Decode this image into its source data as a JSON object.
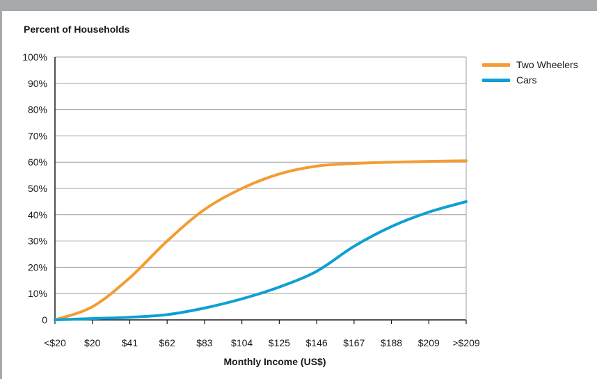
{
  "chart_data": {
    "type": "line",
    "ylabel": "Percent of Households",
    "xlabel": "Monthly Income (US$)",
    "categories": [
      "<$20",
      "$20",
      "$41",
      "$62",
      "$83",
      "$104",
      "$125",
      "$146",
      "$167",
      "$188",
      "$209",
      ">$209"
    ],
    "yticks": [
      "0",
      "10%",
      "20%",
      "30%",
      "40%",
      "50%",
      "60%",
      "70%",
      "80%",
      "90%",
      "100%"
    ],
    "ylim": [
      0,
      100
    ],
    "grid": true,
    "legend_position": "top-right",
    "series": [
      {
        "name": "Two Wheelers",
        "color": "#f39c34",
        "values": [
          0,
          5,
          16,
          30,
          42,
          50,
          55.5,
          58.5,
          59.5,
          60,
          60.3,
          60.5
        ]
      },
      {
        "name": "Cars",
        "color": "#0e9fd3",
        "values": [
          0,
          0.5,
          1,
          2,
          4.5,
          8,
          12.5,
          18.5,
          28,
          35.5,
          41,
          45
        ]
      }
    ]
  }
}
